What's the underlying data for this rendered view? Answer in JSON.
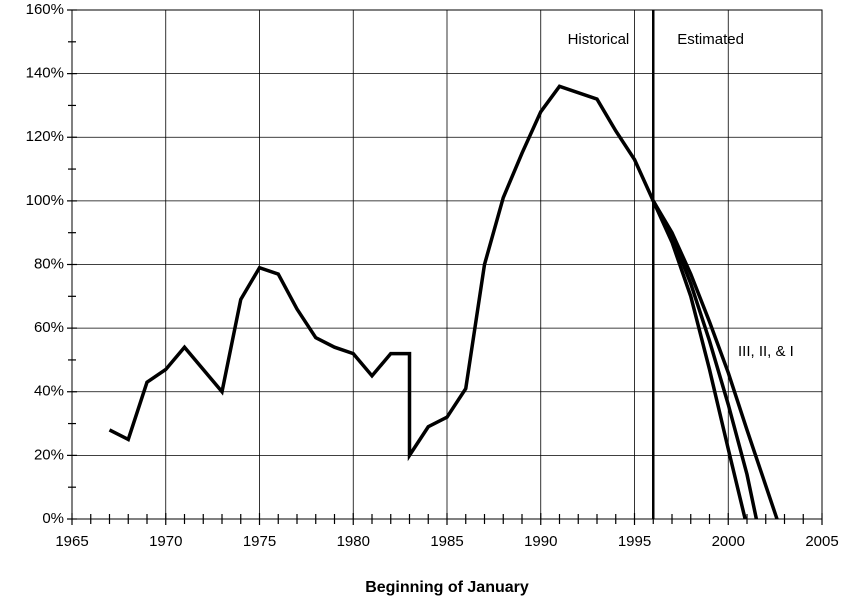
{
  "chart_data": {
    "type": "line",
    "x_label": "Beginning of January",
    "xlim": [
      1965,
      2005
    ],
    "xticks": [
      1965,
      1970,
      1975,
      1980,
      1985,
      1990,
      1995,
      2000,
      2005
    ],
    "ylim": [
      0,
      160
    ],
    "yticks": [
      {
        "value": 0,
        "label": "0%"
      },
      {
        "value": 20,
        "label": "20%"
      },
      {
        "value": 40,
        "label": "40%"
      },
      {
        "value": 60,
        "label": "60%"
      },
      {
        "value": 80,
        "label": "80%"
      },
      {
        "value": 100,
        "label": "100%"
      },
      {
        "value": 120,
        "label": "120%"
      },
      {
        "value": 140,
        "label": "140%"
      },
      {
        "value": 160,
        "label": "160%"
      }
    ],
    "grid": true,
    "color": "#000000",
    "divider_x": 1996,
    "annotations": [
      "Historical",
      "Estimated",
      "III, II, & I"
    ],
    "series": [
      {
        "x": [
          1967,
          1968,
          1969,
          1970,
          1971,
          1973,
          1974,
          1975,
          1976,
          1977,
          1978,
          1979,
          1980,
          1981,
          1982,
          1983,
          1983,
          1984,
          1985,
          1986,
          1987,
          1988,
          1989,
          1990,
          1991,
          1993,
          1994,
          1995,
          1996
        ],
        "values": [
          28,
          25,
          43,
          47,
          54,
          40,
          69,
          79,
          77,
          66,
          57,
          54,
          52,
          45,
          52,
          52,
          20,
          29,
          32,
          41,
          80,
          101,
          115,
          128,
          136,
          132,
          122,
          113,
          100
        ]
      },
      {
        "x": [
          1996,
          1997,
          1998,
          1999,
          2000,
          2001,
          2002.6
        ],
        "values": [
          100,
          90,
          77,
          62,
          46,
          28,
          0
        ]
      },
      {
        "x": [
          1996,
          1997,
          1998,
          1999,
          2000,
          2001,
          2001.5
        ],
        "values": [
          100,
          89,
          74,
          56,
          36,
          14,
          0
        ]
      },
      {
        "x": [
          1996,
          1997,
          1998,
          1999,
          2000,
          2000.9
        ],
        "values": [
          100,
          87,
          70,
          47,
          22,
          0
        ]
      }
    ]
  }
}
